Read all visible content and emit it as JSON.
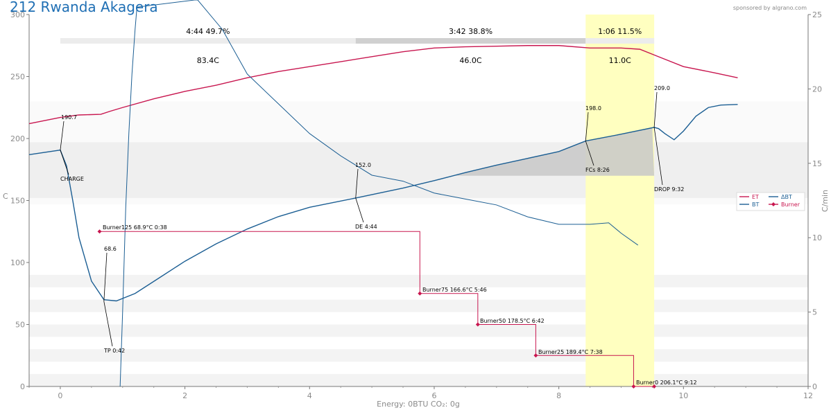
{
  "colors": {
    "et": "#c8164f",
    "bt": "#1b5e93",
    "delta_bt": "#1b5e93",
    "burner": "#c8164f",
    "title": "#1f6fb4",
    "fc_band": "#ffffc0",
    "area": "#c8c8c8"
  },
  "chart_data": {
    "type": "line",
    "title": "212 Rwanda Akagera",
    "sponsor": "sponsored by algrano.com",
    "xlabel": "",
    "ylabel": "C",
    "y2label": "C/min",
    "footer": "Energy: 0BTU   CO₂: 0g",
    "xlim": [
      -0.5,
      12
    ],
    "ylim": [
      0,
      300
    ],
    "y2lim": [
      0,
      25
    ],
    "x_ticks": [
      0,
      2,
      4,
      6,
      8,
      10,
      12
    ],
    "y_ticks": [
      0,
      50,
      100,
      150,
      200,
      250,
      300
    ],
    "y2_ticks": [
      0,
      5,
      10,
      15,
      20,
      25
    ],
    "grid": "horizontal bands",
    "legend_position": "right",
    "legend": [
      "ET",
      "BT",
      "ΔBT",
      "Burner"
    ],
    "series": [
      {
        "name": "ET",
        "axis": "left",
        "x": [
          -0.5,
          0,
          0.3,
          0.65,
          0.8,
          1.0,
          1.5,
          2.0,
          2.5,
          3.0,
          3.5,
          4.0,
          4.5,
          5.0,
          5.5,
          6.0,
          6.5,
          7.0,
          7.5,
          8.0,
          8.5,
          9.0,
          9.3,
          9.6,
          10.0,
          10.5,
          10.87
        ],
        "y": [
          212,
          217,
          219,
          219.5,
          222,
          225,
          232,
          238,
          243,
          249,
          254,
          258,
          262,
          266,
          270,
          273,
          274,
          274.5,
          275,
          275,
          273,
          273,
          272,
          266,
          258,
          253,
          249
        ]
      },
      {
        "name": "BT",
        "axis": "left",
        "x": [
          -0.5,
          0,
          0.1,
          0.2,
          0.3,
          0.5,
          0.7,
          0.9,
          1.2,
          1.6,
          2.0,
          2.5,
          3.0,
          3.5,
          4.0,
          4.74,
          5.5,
          6.0,
          6.5,
          7.0,
          7.5,
          8.0,
          8.43,
          9.0,
          9.53,
          9.6,
          9.7,
          9.85,
          10.0,
          10.2,
          10.4,
          10.6,
          10.87
        ],
        "y": [
          187,
          190.7,
          178,
          150,
          120,
          85,
          70,
          69,
          75,
          88,
          101,
          115,
          127,
          137,
          144.5,
          152,
          160,
          166,
          172.5,
          178.5,
          184,
          189.5,
          198,
          203.5,
          209,
          208,
          204,
          199,
          206,
          218,
          225,
          227,
          227.5
        ]
      },
      {
        "name": "ΔBT",
        "axis": "right",
        "x": [
          0.96,
          1.0,
          1.05,
          1.1,
          1.15,
          1.2,
          1.23,
          2.2,
          2.6,
          3.0,
          3.5,
          4.0,
          4.5,
          5.0,
          5.5,
          6.0,
          6.5,
          7.0,
          7.5,
          8.0,
          8.5,
          8.8,
          9.0,
          9.27
        ],
        "y": [
          0,
          5,
          12,
          17,
          21,
          24,
          25.5,
          26,
          24,
          21,
          19,
          17,
          15.5,
          14.2,
          13.8,
          13,
          12.6,
          12.2,
          11.4,
          10.9,
          10.9,
          11.0,
          10.3,
          9.5
        ]
      }
    ],
    "burner": {
      "name": "Burner",
      "axis": "left",
      "x": [
        0.63,
        5.77,
        6.7,
        7.63,
        9.2,
        9.53
      ],
      "y": [
        125,
        75,
        50,
        25,
        0,
        0
      ]
    },
    "phases": [
      {
        "label": "4:44  49.7%",
        "delta": "83.4C",
        "start": 0,
        "end": 4.74
      },
      {
        "label": "3:42  38.8%",
        "delta": "46.0C",
        "start": 4.74,
        "end": 8.43
      },
      {
        "label": "1:06  11.5%",
        "delta": "11.0C",
        "start": 8.43,
        "end": 9.53
      }
    ],
    "annotations": [
      {
        "value": "190.7",
        "label": "CHARGE"
      },
      {
        "value": "68.6",
        "label": "TP 0:42"
      },
      {
        "value": "152.0",
        "label": "DE 4:44"
      },
      {
        "value": "198.0",
        "label": "FCs 8:26"
      },
      {
        "value": "209.0",
        "label": "DROP 9:32"
      }
    ],
    "burner_labels": [
      "Burner125 68.9°C 0:38",
      "Burner75 166.6°C 5:46",
      "Burner50 178.5°C 6:42",
      "Burner25 189.4°C 7:38",
      "Burner0 206.1°C 9:12"
    ],
    "fc_band_x": [
      8.43,
      9.53
    ],
    "aucs_area": {
      "x": [
        5,
        9.53
      ],
      "base": 170
    }
  }
}
